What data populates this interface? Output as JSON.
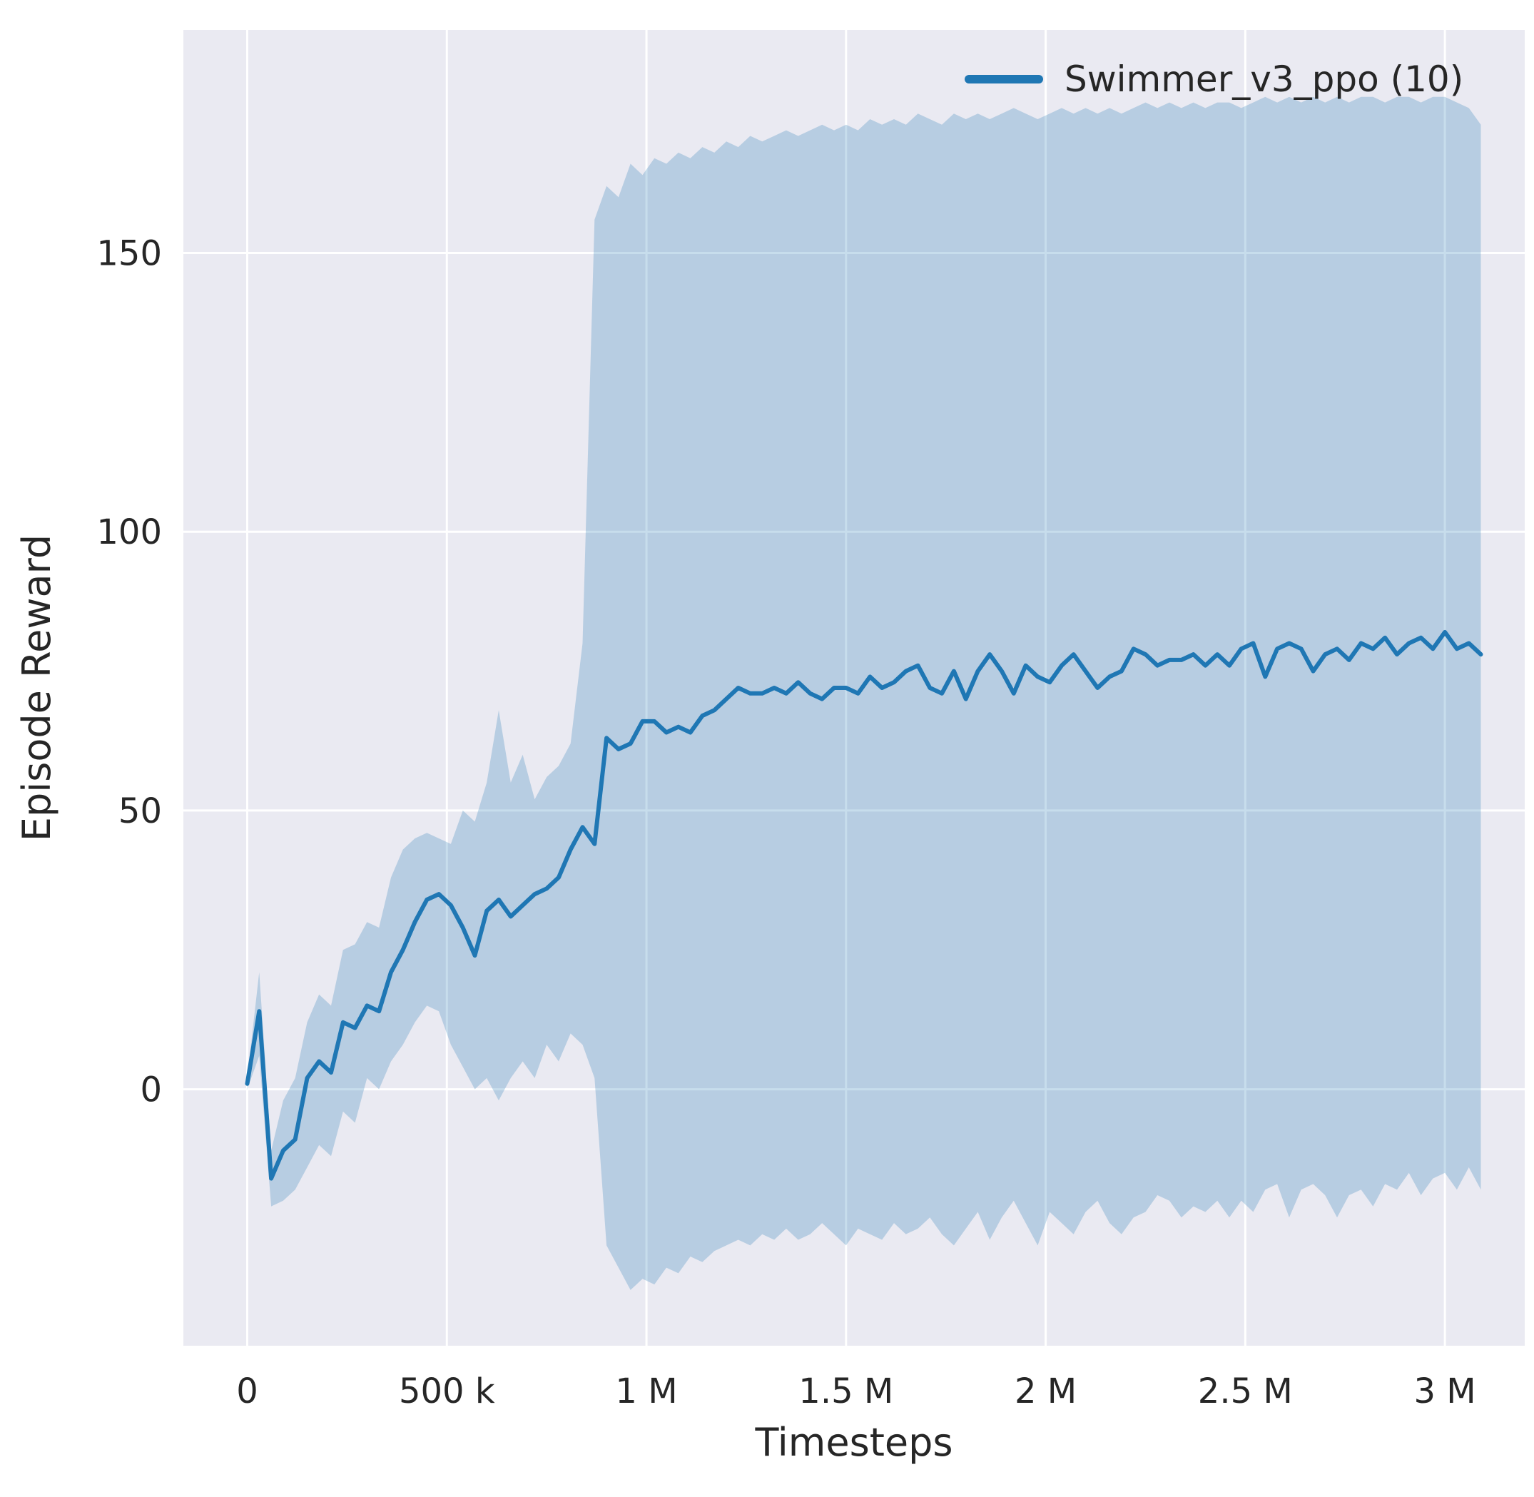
{
  "figure": {
    "background": "#ffffff"
  },
  "chart_data": {
    "type": "line",
    "title": "",
    "xlabel": "Timesteps",
    "ylabel": "Episode Reward",
    "grid": true,
    "legend_position": "upper right",
    "xlim": [
      -160000,
      3200000
    ],
    "ylim": [
      -46,
      190
    ],
    "colors": {
      "axes_background": "#eaeaf2",
      "grid": "#ffffff",
      "line": "#1f77b4",
      "band": "#1f77b4",
      "band_opacity": 0.25,
      "text": "#262626"
    },
    "xticks": {
      "values": [
        0,
        500000,
        1000000,
        1500000,
        2000000,
        2500000,
        3000000
      ],
      "labels": [
        "0",
        "500 k",
        "1 M",
        "1.5 M",
        "2 M",
        "2.5 M",
        "3 M"
      ]
    },
    "yticks": {
      "values": [
        0,
        50,
        100,
        150
      ],
      "labels": [
        "0",
        "50",
        "100",
        "150"
      ]
    },
    "series": [
      {
        "name": "Swimmer_v3_ppo (10)",
        "color": "#1f77b4",
        "x": [
          0,
          30000,
          60000,
          90000,
          120000,
          150000,
          180000,
          210000,
          240000,
          270000,
          300000,
          330000,
          360000,
          390000,
          420000,
          450000,
          480000,
          510000,
          540000,
          570000,
          600000,
          630000,
          660000,
          690000,
          720000,
          750000,
          780000,
          810000,
          840000,
          870000,
          900000,
          930000,
          960000,
          990000,
          1020000,
          1050000,
          1080000,
          1110000,
          1140000,
          1170000,
          1200000,
          1230000,
          1260000,
          1290000,
          1320000,
          1350000,
          1380000,
          1410000,
          1440000,
          1470000,
          1500000,
          1530000,
          1560000,
          1590000,
          1620000,
          1650000,
          1680000,
          1710000,
          1740000,
          1770000,
          1800000,
          1830000,
          1860000,
          1890000,
          1920000,
          1950000,
          1980000,
          2010000,
          2040000,
          2070000,
          2100000,
          2130000,
          2160000,
          2190000,
          2220000,
          2250000,
          2280000,
          2310000,
          2340000,
          2370000,
          2400000,
          2430000,
          2460000,
          2490000,
          2520000,
          2550000,
          2580000,
          2610000,
          2640000,
          2670000,
          2700000,
          2730000,
          2760000,
          2790000,
          2820000,
          2850000,
          2880000,
          2910000,
          2940000,
          2970000,
          3000000,
          3030000,
          3060000,
          3090000
        ],
        "mean": [
          1,
          14,
          -16,
          -11,
          -9,
          2,
          5,
          3,
          12,
          11,
          15,
          14,
          21,
          25,
          30,
          34,
          35,
          33,
          29,
          24,
          32,
          34,
          31,
          33,
          35,
          36,
          38,
          43,
          47,
          44,
          63,
          61,
          62,
          66,
          66,
          64,
          65,
          64,
          67,
          68,
          70,
          72,
          71,
          71,
          72,
          71,
          73,
          71,
          70,
          72,
          72,
          71,
          74,
          72,
          73,
          75,
          76,
          72,
          71,
          75,
          70,
          75,
          78,
          75,
          71,
          76,
          74,
          73,
          76,
          78,
          75,
          72,
          74,
          75,
          79,
          78,
          76,
          77,
          77,
          78,
          76,
          78,
          76,
          79,
          80,
          74,
          79,
          80,
          79,
          75,
          78,
          79,
          77,
          80,
          79,
          81,
          78,
          80,
          81,
          79,
          82,
          79,
          80,
          78
        ],
        "lower": [
          0,
          6,
          -21,
          -20,
          -18,
          -14,
          -10,
          -12,
          -4,
          -6,
          2,
          0,
          5,
          8,
          12,
          15,
          14,
          8,
          4,
          0,
          2,
          -2,
          2,
          5,
          2,
          8,
          5,
          10,
          8,
          2,
          -28,
          -32,
          -36,
          -34,
          -35,
          -32,
          -33,
          -30,
          -31,
          -29,
          -28,
          -27,
          -28,
          -26,
          -27,
          -25,
          -27,
          -26,
          -24,
          -26,
          -28,
          -25,
          -26,
          -27,
          -24,
          -26,
          -25,
          -23,
          -26,
          -28,
          -25,
          -22,
          -27,
          -23,
          -20,
          -24,
          -28,
          -22,
          -24,
          -26,
          -22,
          -20,
          -24,
          -26,
          -23,
          -22,
          -19,
          -20,
          -23,
          -21,
          -22,
          -20,
          -23,
          -20,
          -22,
          -18,
          -17,
          -23,
          -18,
          -17,
          -19,
          -23,
          -19,
          -18,
          -21,
          -17,
          -18,
          -15,
          -19,
          -16,
          -15,
          -18,
          -14,
          -18
        ],
        "upper": [
          2,
          21,
          -11,
          -2,
          2,
          12,
          17,
          15,
          25,
          26,
          30,
          29,
          38,
          43,
          45,
          46,
          45,
          44,
          50,
          48,
          55,
          68,
          55,
          60,
          52,
          56,
          58,
          62,
          80,
          156,
          162,
          160,
          166,
          164,
          167,
          166,
          168,
          167,
          169,
          168,
          170,
          169,
          171,
          170,
          171,
          172,
          171,
          172,
          173,
          172,
          173,
          172,
          174,
          173,
          174,
          173,
          175,
          174,
          173,
          175,
          174,
          175,
          174,
          175,
          176,
          175,
          174,
          175,
          176,
          175,
          176,
          175,
          176,
          175,
          176,
          177,
          176,
          177,
          176,
          177,
          176,
          177,
          177,
          176,
          177,
          178,
          177,
          178,
          177,
          178,
          177,
          178,
          177,
          178,
          178,
          177,
          178,
          178,
          177,
          178,
          178,
          177,
          176,
          173
        ]
      }
    ]
  }
}
